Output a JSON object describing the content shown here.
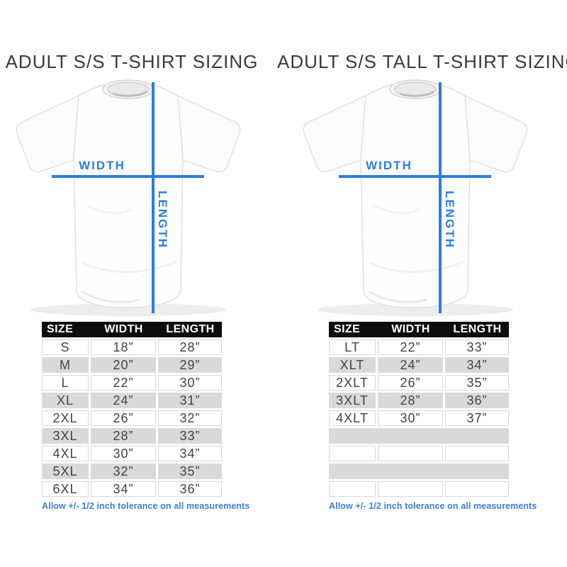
{
  "shirt_labels": {
    "width": "WIDTH",
    "length": "LENGTH"
  },
  "colors": {
    "accent_blue": "#2b7de2",
    "note_blue": "#3e80d0",
    "table_header_bg": "#0d0d0d",
    "table_header_text": "#ffffff",
    "row_alt_gray": "#d9d9d9",
    "body_text": "#424242",
    "title_text": "#3b3b3b"
  },
  "chart_data": [
    {
      "type": "table",
      "title": "ADULT S/S T-SHIRT SIZING",
      "columns": [
        "SIZE",
        "WIDTH",
        "LENGTH"
      ],
      "rows": [
        [
          "S",
          "18”",
          "28”"
        ],
        [
          "M",
          "20”",
          "29”"
        ],
        [
          "L",
          "22”",
          "30”"
        ],
        [
          "XL",
          "24”",
          "31”"
        ],
        [
          "2XL",
          "26”",
          "32”"
        ],
        [
          "3XL",
          "28”",
          "33”"
        ],
        [
          "4XL",
          "30”",
          "34”"
        ],
        [
          "5XL",
          "32”",
          "35”"
        ],
        [
          "6XL",
          "34”",
          "36”"
        ]
      ],
      "empty_rows": 0,
      "note": "Allow +/- 1/2 inch tolerance on all measurements"
    },
    {
      "type": "table",
      "title": "ADULT S/S TALL T-SHIRT SIZING",
      "columns": [
        "SIZE",
        "WIDTH",
        "LENGTH"
      ],
      "rows": [
        [
          "LT",
          "22”",
          "33”"
        ],
        [
          "XLT",
          "24”",
          "34”"
        ],
        [
          "2XLT",
          "26”",
          "35”"
        ],
        [
          "3XLT",
          "28”",
          "36”"
        ],
        [
          "4XLT",
          "30”",
          "37”"
        ]
      ],
      "empty_rows": 4,
      "note": "Allow +/- 1/2 inch tolerance on all measurements"
    }
  ]
}
